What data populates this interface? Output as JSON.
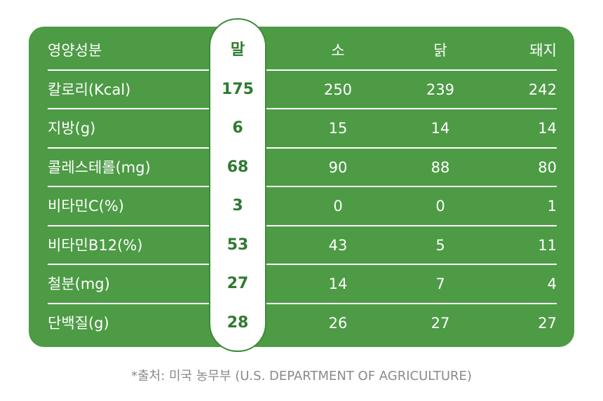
{
  "chart_data": {
    "type": "table",
    "columns": [
      "영양성분",
      "말",
      "소",
      "닭",
      "돼지"
    ],
    "rows": [
      {
        "label": "칼로리(Kcal)",
        "values": [
          "175",
          "250",
          "239",
          "242"
        ]
      },
      {
        "label": "지방(g)",
        "values": [
          "6",
          "15",
          "14",
          "14"
        ]
      },
      {
        "label": "콜레스테롤(mg)",
        "values": [
          "68",
          "90",
          "88",
          "80"
        ]
      },
      {
        "label": "비타민C(%)",
        "values": [
          "3",
          "0",
          "0",
          "1"
        ]
      },
      {
        "label": "비타민B12(%)",
        "values": [
          "53",
          "43",
          "5",
          "11"
        ]
      },
      {
        "label": "철분(mg)",
        "values": [
          "27",
          "14",
          "7",
          "4"
        ]
      },
      {
        "label": "단백질(g)",
        "values": [
          "28",
          "26",
          "27",
          "27"
        ]
      }
    ],
    "highlight_column": "말",
    "colors": {
      "card": "#4d9b45",
      "highlight_text": "#2f7a30",
      "text": "#ffffff",
      "source": "#8a8a8a"
    }
  },
  "source": "*출처: 미국 농무부 (U.S. DEPARTMENT OF AGRICULTURE)"
}
